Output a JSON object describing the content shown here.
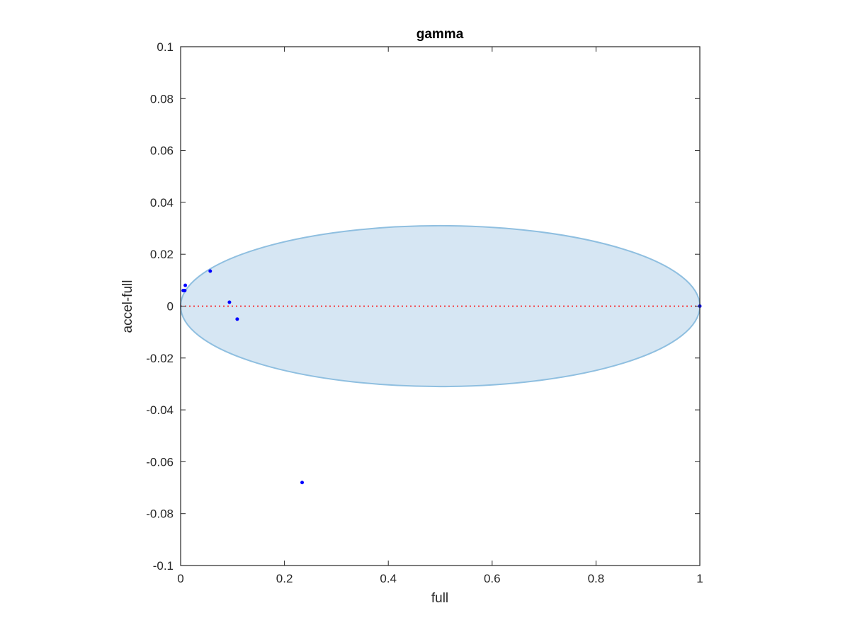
{
  "chart_data": {
    "type": "scatter",
    "title": "gamma",
    "xlabel": "full",
    "ylabel": "accel-full",
    "xlim": [
      0,
      1
    ],
    "ylim": [
      -0.1,
      0.1
    ],
    "xticks": [
      0,
      0.2,
      0.4,
      0.6,
      0.8,
      1
    ],
    "xtick_labels": [
      "0",
      "0.2",
      "0.4",
      "0.6",
      "0.8",
      "1"
    ],
    "yticks": [
      -0.1,
      -0.08,
      -0.06,
      -0.04,
      -0.02,
      0,
      0.02,
      0.04,
      0.06,
      0.08,
      0.1
    ],
    "ytick_labels": [
      "-0.1",
      "-0.08",
      "-0.06",
      "-0.04",
      "-0.02",
      "0",
      "0.02",
      "0.04",
      "0.06",
      "0.08",
      "0.1"
    ],
    "grid": false,
    "points": {
      "x": [
        0.005,
        0.008,
        0.009,
        0.057,
        0.094,
        0.109,
        0.234,
        1.0
      ],
      "y": [
        0.006,
        0.006,
        0.008,
        0.0135,
        0.0015,
        -0.005,
        -0.068,
        0.0
      ]
    },
    "ellipse": {
      "center": [
        0.5,
        0.0
      ],
      "semi_axes": [
        0.5,
        0.031
      ]
    },
    "reference_line": {
      "y": 0,
      "style": "dotted"
    },
    "colors": {
      "points": "#0000ff",
      "ellipse_fill": "#d6e6f3",
      "ellipse_edge": "#8fbfe0",
      "reference_line": "#ff0000",
      "axes": "#262626"
    }
  }
}
